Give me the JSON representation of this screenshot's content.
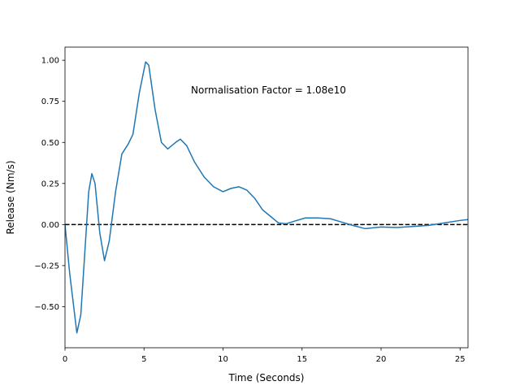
{
  "chart_data": {
    "type": "line",
    "xlabel": "Time (Seconds)",
    "ylabel": "Release (Nm/s)",
    "annotation": "Normalisation Factor = 1.08e10",
    "hline": 0,
    "x": [
      0,
      0.3,
      0.75,
      1.0,
      1.3,
      1.5,
      1.7,
      1.9,
      2.2,
      2.5,
      2.8,
      3.2,
      3.6,
      4.0,
      4.3,
      4.7,
      5.1,
      5.3,
      5.7,
      6.1,
      6.5,
      7.0,
      7.3,
      7.7,
      8.2,
      8.8,
      9.4,
      10.0,
      10.5,
      11.0,
      11.5,
      12.0,
      12.5,
      13.0,
      13.5,
      14.0,
      14.5,
      15.2,
      16.0,
      16.8,
      17.5,
      18.2,
      19.0,
      20.0,
      21.0,
      22.0,
      23.0,
      24.0,
      25.0,
      25.5
    ],
    "series": [
      {
        "name": "Release",
        "color": "#1f77b4",
        "values": [
          0.0,
          -0.3,
          -0.66,
          -0.55,
          -0.1,
          0.2,
          0.31,
          0.25,
          -0.05,
          -0.22,
          -0.1,
          0.2,
          0.43,
          0.49,
          0.55,
          0.8,
          0.99,
          0.97,
          0.7,
          0.5,
          0.46,
          0.5,
          0.52,
          0.48,
          0.38,
          0.29,
          0.23,
          0.2,
          0.22,
          0.23,
          0.21,
          0.16,
          0.09,
          0.05,
          0.01,
          0.005,
          0.02,
          0.04,
          0.04,
          0.035,
          0.015,
          -0.005,
          -0.025,
          -0.015,
          -0.018,
          -0.012,
          -0.005,
          0.01,
          0.025,
          0.03
        ]
      }
    ],
    "xlim": [
      0,
      25.5
    ],
    "ylim": [
      -0.75,
      1.08
    ],
    "xticks": [
      0,
      5,
      10,
      15,
      20,
      25
    ],
    "yticks": [
      {
        "value": -0.5,
        "label": "−0.50"
      },
      {
        "value": -0.25,
        "label": "−0.25"
      },
      {
        "value": 0,
        "label": "0.00"
      },
      {
        "value": 0.25,
        "label": "0.25"
      },
      {
        "value": 0.5,
        "label": "0.50"
      },
      {
        "value": 0.75,
        "label": "0.75"
      },
      {
        "value": 1.0,
        "label": "1.00"
      }
    ]
  }
}
